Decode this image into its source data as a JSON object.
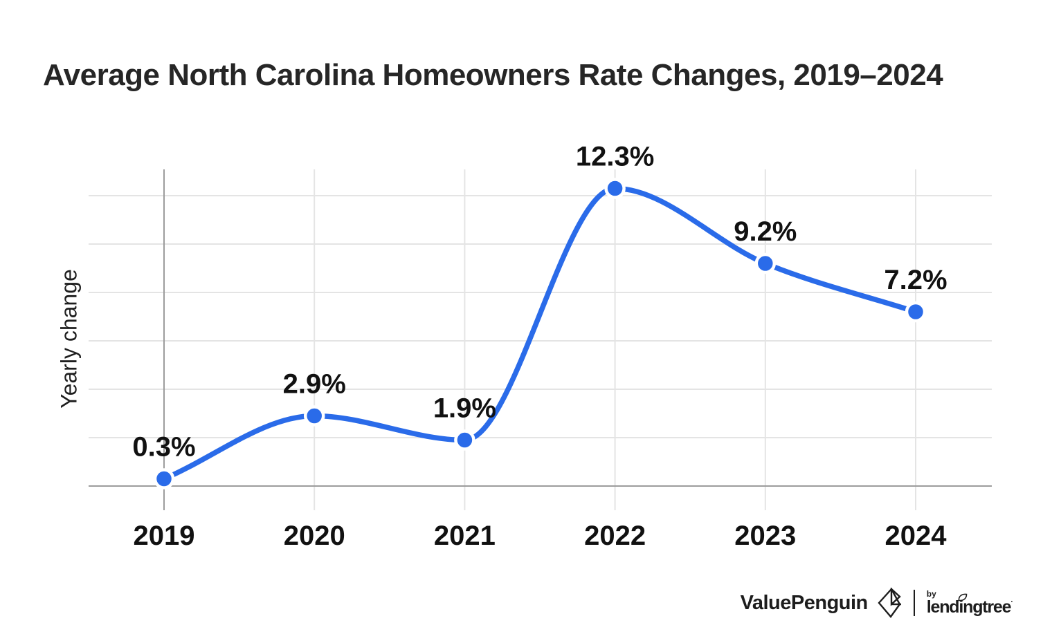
{
  "title": "Average North Carolina Homeowners Rate Changes, 2019–2024",
  "chart_data": {
    "type": "line",
    "title": "Average North Carolina Homeowners Rate Changes, 2019–2024",
    "categories": [
      "2019",
      "2020",
      "2021",
      "2022",
      "2023",
      "2024"
    ],
    "values": [
      0.3,
      2.9,
      1.9,
      12.3,
      9.2,
      7.2
    ],
    "point_labels": [
      "0.3%",
      "2.9%",
      "1.9%",
      "12.3%",
      "9.2%",
      "7.2%"
    ],
    "xlabel": "",
    "ylabel": "Yearly change",
    "ylim": [
      0,
      13.1
    ],
    "ytick_step": 2,
    "ytick_labels_visible": false,
    "grid": "on",
    "legend": "none",
    "curve": "monotone",
    "line_color": "#2a6be9",
    "marker_color": "#2a6be9",
    "marker_stroke": "#ffffff"
  },
  "colors": {
    "grid_light": "#e4e4e4",
    "grid_dark": "#9c9c9c",
    "chart_label": "#111111",
    "title_text": "#262626",
    "logo_ink": "#1d1d1d"
  },
  "footer": {
    "brand": "ValuePenguin",
    "by_label": "by",
    "partner": "lendingtree",
    "partner_mark": "·"
  }
}
